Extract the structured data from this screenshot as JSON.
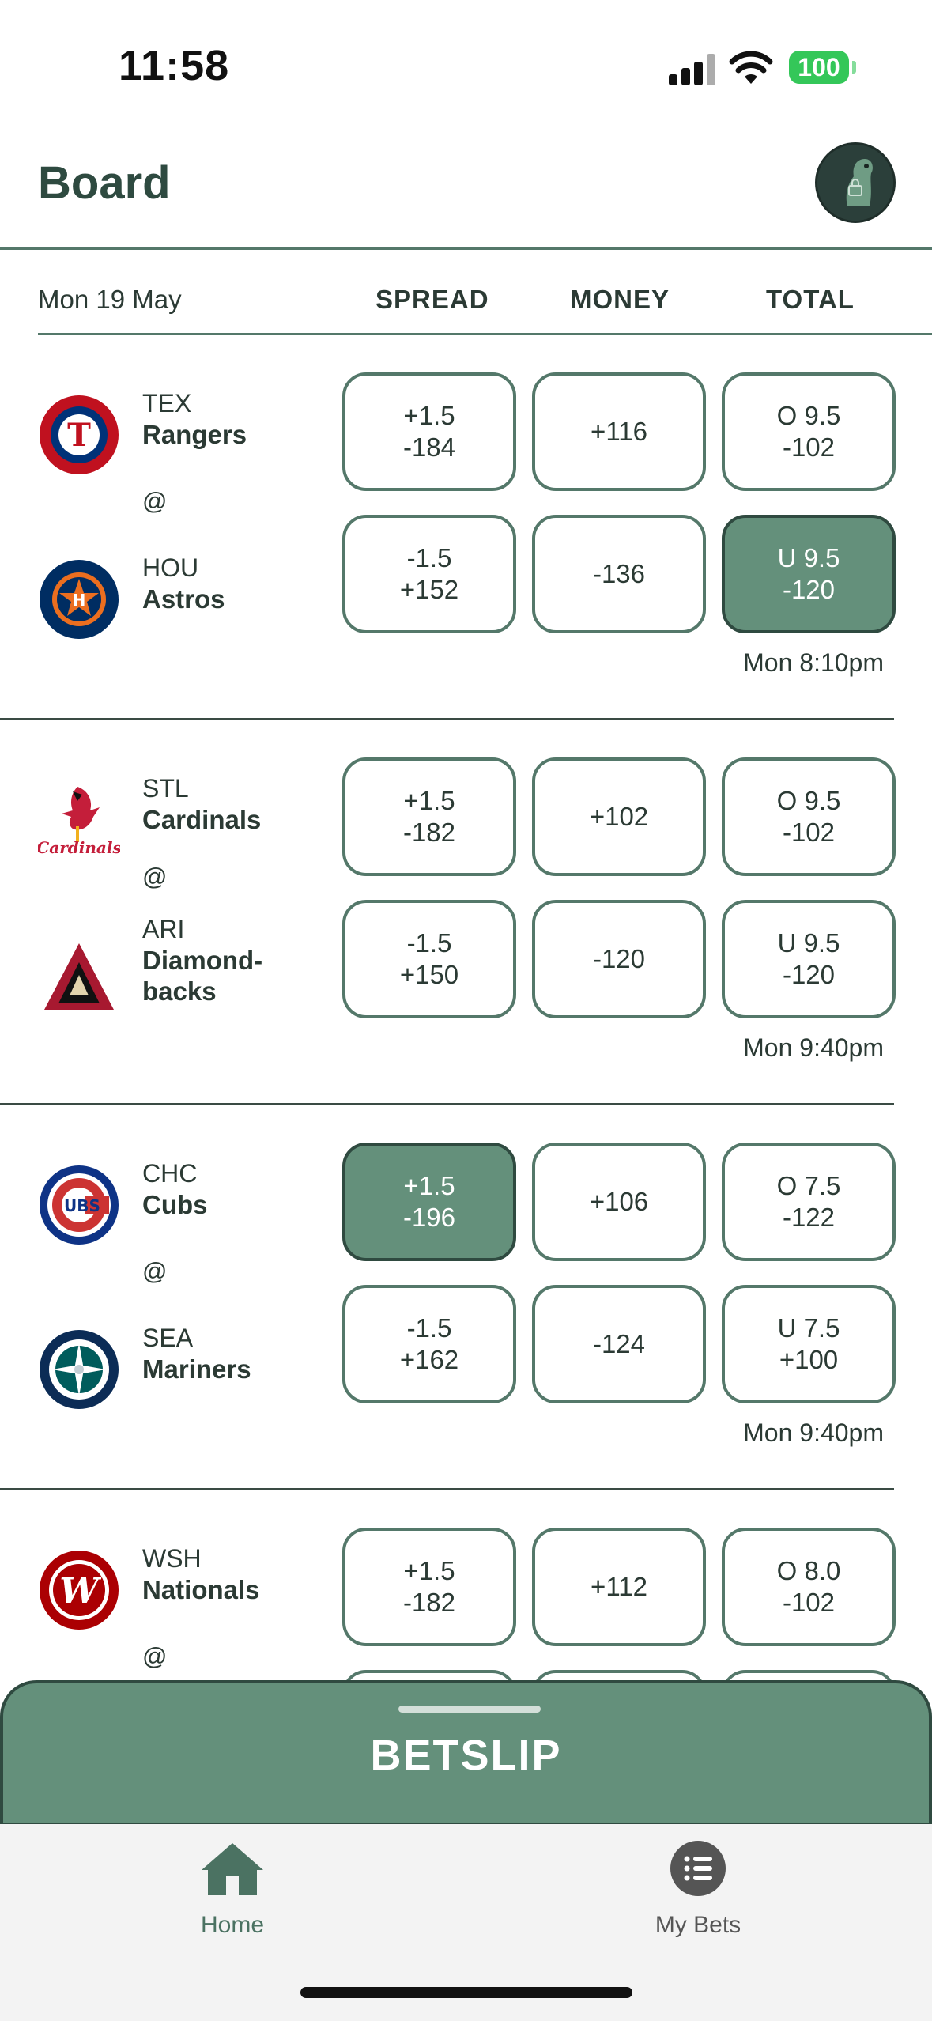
{
  "status_bar": {
    "time": "11:58",
    "battery": "100"
  },
  "header": {
    "title": "Board",
    "avatar": "dinosaur-avatar"
  },
  "columns": {
    "date": "Mon 19 May",
    "spread": "SPREAD",
    "money": "MONEY",
    "total": "TOTAL"
  },
  "games": [
    {
      "away": {
        "abbr": "TEX",
        "name": "Rangers",
        "logo": "rangers-logo"
      },
      "home": {
        "abbr": "HOU",
        "name": "Astros",
        "logo": "astros-logo"
      },
      "at": "@",
      "away_odds": {
        "spread_line": "+1.5",
        "spread_price": "-184",
        "money": "+116",
        "total_line": "O 9.5",
        "total_price": "-102"
      },
      "home_odds": {
        "spread_line": "-1.5",
        "spread_price": "+152",
        "money": "-136",
        "total_line": "U 9.5",
        "total_price": "-120"
      },
      "selected": "home_total",
      "time": "Mon 8:10pm"
    },
    {
      "away": {
        "abbr": "STL",
        "name": "Cardinals",
        "logo": "cardinals-logo"
      },
      "home": {
        "abbr": "ARI",
        "name": "Diamond-backs",
        "logo": "diamondbacks-logo"
      },
      "at": "@",
      "away_odds": {
        "spread_line": "+1.5",
        "spread_price": "-182",
        "money": "+102",
        "total_line": "O 9.5",
        "total_price": "-102"
      },
      "home_odds": {
        "spread_line": "-1.5",
        "spread_price": "+150",
        "money": "-120",
        "total_line": "U 9.5",
        "total_price": "-120"
      },
      "selected": "",
      "time": "Mon 9:40pm"
    },
    {
      "away": {
        "abbr": "CHC",
        "name": "Cubs",
        "logo": "cubs-logo"
      },
      "home": {
        "abbr": "SEA",
        "name": "Mariners",
        "logo": "mariners-logo"
      },
      "at": "@",
      "away_odds": {
        "spread_line": "+1.5",
        "spread_price": "-196",
        "money": "+106",
        "total_line": "O 7.5",
        "total_price": "-122"
      },
      "home_odds": {
        "spread_line": "-1.5",
        "spread_price": "+162",
        "money": "-124",
        "total_line": "U 7.5",
        "total_price": "+100"
      },
      "selected": "away_spread",
      "time": "Mon 9:40pm"
    },
    {
      "away": {
        "abbr": "WSH",
        "name": "Nationals",
        "logo": "nationals-logo"
      },
      "at": "@",
      "away_odds": {
        "spread_line": "+1.5",
        "spread_price": "-182",
        "money": "+112",
        "total_line": "O 8.0",
        "total_price": "-102"
      }
    }
  ],
  "betslip": {
    "label": "BETSLIP"
  },
  "tabs": {
    "home": "Home",
    "my_bets": "My Bets"
  },
  "colors": {
    "accent": "#64907b",
    "border": "#54786a",
    "selected_border": "#2f4a40",
    "battery": "#34c759"
  }
}
